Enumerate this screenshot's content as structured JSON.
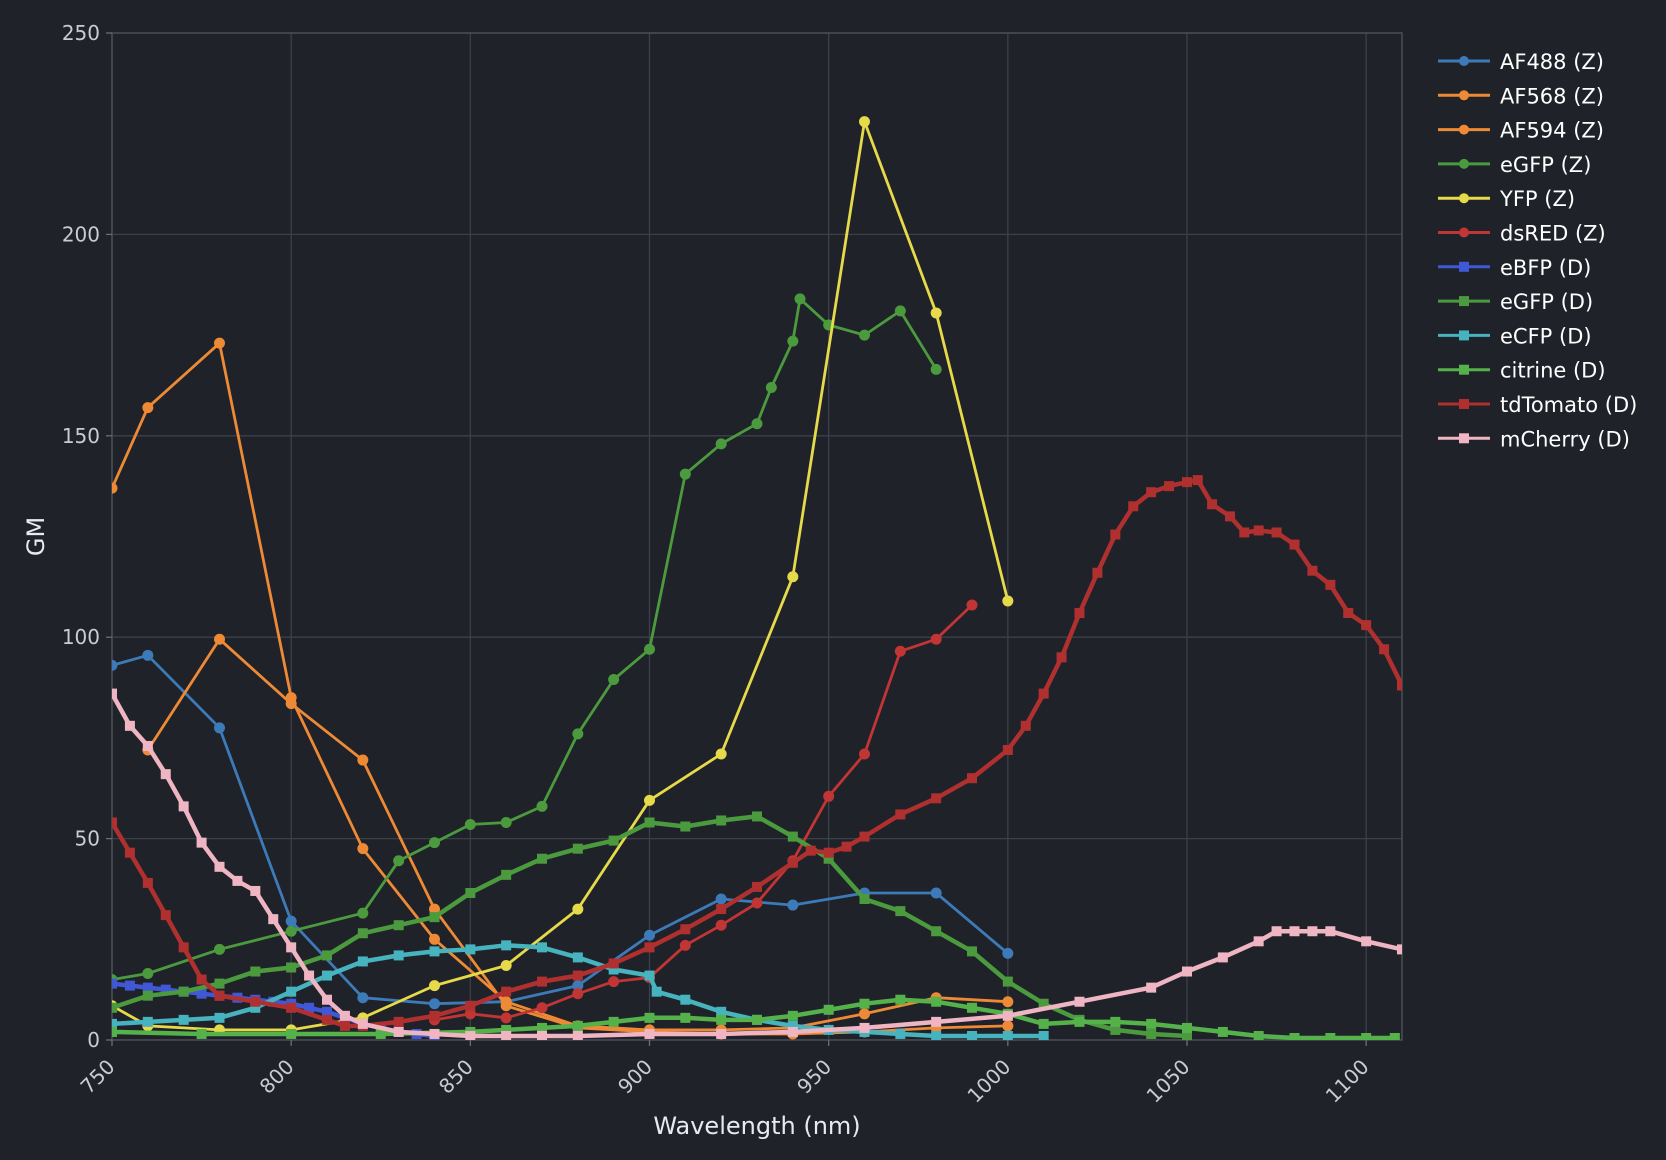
{
  "chart_data": {
    "type": "line",
    "title": "",
    "xlabel": "Wavelength (nm)",
    "ylabel": "GM",
    "xlim": [
      750,
      1110
    ],
    "ylim": [
      0,
      250
    ],
    "xticks": [
      750,
      800,
      850,
      900,
      950,
      1000,
      1050,
      1100
    ],
    "yticks": [
      0,
      50,
      100,
      150,
      200,
      250
    ],
    "grid": true,
    "legend_position": "right",
    "series": [
      {
        "name": "AF488 (Z)",
        "color": "#3d7ab8",
        "marker": "circle",
        "x": [
          750,
          760,
          780,
          800,
          820,
          840,
          860,
          880,
          900,
          920,
          940,
          960,
          980,
          1000
        ],
        "y": [
          93,
          95.5,
          77.5,
          29.5,
          10.5,
          9,
          9.5,
          13.5,
          26,
          35,
          33.5,
          36.5,
          36.5,
          21.5
        ]
      },
      {
        "name": "AF568 (Z)",
        "color": "#ee8a35",
        "marker": "circle",
        "x": [
          750,
          760,
          780,
          800,
          820,
          840,
          860,
          880,
          900,
          920,
          940,
          960,
          980,
          1000
        ],
        "y": [
          137,
          157,
          173,
          85,
          47.5,
          25,
          9.5,
          3.5,
          2.5,
          2.5,
          3,
          6.5,
          10.5,
          9.5
        ]
      },
      {
        "name": "AF594 (Z)",
        "color": "#ee8a35",
        "marker": "circle",
        "x": [
          760,
          780,
          800,
          820,
          840,
          860,
          880,
          900,
          920,
          940,
          960,
          980,
          1000
        ],
        "y": [
          72,
          99.5,
          83.5,
          69.5,
          32.5,
          8.5,
          3,
          2,
          1.5,
          1.5,
          2,
          3,
          3.5
        ]
      },
      {
        "name": "eGFP (Z)",
        "color": "#4b9b3e",
        "marker": "circle",
        "x": [
          750,
          760,
          780,
          800,
          820,
          830,
          840,
          850,
          860,
          870,
          880,
          890,
          900,
          910,
          920,
          930,
          934,
          940,
          942,
          950,
          960,
          970,
          980
        ],
        "y": [
          15,
          16.5,
          22.5,
          27,
          31.5,
          44.5,
          49,
          53.5,
          54,
          58,
          76,
          89.5,
          97,
          140.5,
          148,
          153,
          162,
          173.5,
          184,
          177.5,
          175,
          181,
          166.5
        ]
      },
      {
        "name": "YFP (Z)",
        "color": "#e6d94a",
        "marker": "circle",
        "x": [
          750,
          760,
          780,
          800,
          820,
          840,
          860,
          880,
          900,
          920,
          940,
          960,
          980,
          1000
        ],
        "y": [
          8.5,
          3.5,
          2.5,
          2.5,
          5.5,
          13.5,
          18.5,
          32.5,
          59.5,
          71,
          115,
          228,
          180.5,
          109
        ]
      },
      {
        "name": "dsRED (Z)",
        "color": "#c13535",
        "marker": "circle",
        "x": [
          840,
          850,
          860,
          870,
          880,
          890,
          900,
          910,
          920,
          930,
          940,
          950,
          960,
          970,
          980,
          990
        ],
        "y": [
          5,
          6.5,
          5.5,
          8,
          11.5,
          14.5,
          15.5,
          23.5,
          28.5,
          34,
          44.5,
          60.5,
          71,
          96.5,
          99.5,
          108
        ]
      },
      {
        "name": "eBFP (D)",
        "color": "#4158d6",
        "marker": "square",
        "x": [
          750,
          755,
          760,
          765,
          770,
          775,
          780,
          785,
          790,
          795,
          800,
          805,
          810,
          815,
          820,
          825,
          830,
          835,
          840
        ],
        "y": [
          14,
          13.5,
          13,
          12.5,
          12,
          11.5,
          11,
          10.5,
          10,
          9.5,
          9,
          8,
          7,
          5.5,
          4,
          3,
          2,
          1.5,
          1
        ]
      },
      {
        "name": "eGFP (D)",
        "color": "#4b9b3e",
        "marker": "square",
        "x": [
          750,
          760,
          770,
          780,
          790,
          800,
          810,
          820,
          830,
          840,
          850,
          860,
          870,
          880,
          890,
          900,
          910,
          920,
          930,
          940,
          950,
          960,
          970,
          980,
          990,
          1000,
          1010,
          1020,
          1030,
          1040,
          1050
        ],
        "y": [
          8,
          11,
          12,
          14,
          17,
          18,
          21,
          26.5,
          28.5,
          30.5,
          36.5,
          41,
          45,
          47.5,
          49.5,
          54,
          53,
          54.5,
          55.5,
          50.5,
          45,
          35,
          32,
          27,
          22,
          14.5,
          9,
          5,
          2.5,
          1.5,
          1
        ]
      },
      {
        "name": "eCFP (D)",
        "color": "#46b3bf",
        "marker": "square",
        "x": [
          750,
          760,
          770,
          780,
          790,
          800,
          810,
          820,
          830,
          840,
          850,
          860,
          870,
          880,
          890,
          900,
          902,
          910,
          920,
          930,
          940,
          950,
          960,
          970,
          980,
          990,
          1000,
          1010
        ],
        "y": [
          4,
          4.5,
          5,
          5.5,
          8,
          12,
          16,
          19.5,
          21,
          22,
          22.5,
          23.5,
          23,
          20.5,
          17.5,
          16,
          12,
          10,
          7,
          5,
          3.5,
          2.5,
          2,
          1.5,
          1,
          1,
          1,
          1
        ]
      },
      {
        "name": "citrine (D)",
        "color": "#55b24a",
        "marker": "square",
        "x": [
          750,
          775,
          800,
          825,
          850,
          860,
          870,
          880,
          890,
          900,
          910,
          920,
          930,
          940,
          950,
          960,
          970,
          980,
          990,
          1000,
          1010,
          1020,
          1030,
          1040,
          1050,
          1060,
          1070,
          1080,
          1090,
          1100,
          1108
        ],
        "y": [
          2,
          1.5,
          1.5,
          1.5,
          2,
          2.5,
          3,
          3.5,
          4.5,
          5.5,
          5.5,
          5,
          5,
          6,
          7.5,
          9,
          10,
          9.5,
          8,
          6.5,
          4,
          4.5,
          4.5,
          4,
          3,
          2,
          1,
          0.5,
          0.5,
          0.5,
          0.5
        ]
      },
      {
        "name": "tdTomato (D)",
        "color": "#b03030",
        "marker": "square",
        "x": [
          750,
          755,
          760,
          765,
          770,
          775,
          780,
          790,
          800,
          810,
          815,
          820,
          830,
          840,
          850,
          860,
          870,
          880,
          890,
          900,
          910,
          920,
          930,
          940,
          945,
          950,
          955,
          960,
          970,
          980,
          990,
          1000,
          1005,
          1010,
          1015,
          1020,
          1025,
          1030,
          1035,
          1040,
          1045,
          1050,
          1053,
          1057,
          1062,
          1066,
          1070,
          1075,
          1080,
          1085,
          1090,
          1095,
          1100,
          1105,
          1110
        ],
        "y": [
          54,
          46.5,
          39,
          31,
          23,
          15,
          11,
          9.5,
          8,
          5,
          3.5,
          3.5,
          4.5,
          6,
          8.5,
          12,
          14.5,
          16,
          19,
          23,
          27.5,
          32.5,
          38,
          44,
          47,
          46.5,
          48,
          50.5,
          56,
          60,
          65,
          72,
          78,
          86,
          95,
          106,
          116,
          125.5,
          132.5,
          136,
          137.5,
          138.5,
          139,
          133,
          130,
          126,
          126.5,
          126,
          123,
          116.5,
          113,
          106,
          103,
          97,
          88
        ]
      },
      {
        "name": "mCherry (D)",
        "color": "#f0b5c3",
        "marker": "square",
        "x": [
          750,
          755,
          760,
          765,
          770,
          775,
          780,
          785,
          790,
          795,
          800,
          805,
          810,
          815,
          820,
          830,
          840,
          850,
          860,
          870,
          880,
          900,
          920,
          940,
          960,
          980,
          1000,
          1020,
          1040,
          1050,
          1060,
          1070,
          1075,
          1080,
          1085,
          1090,
          1100,
          1110
        ],
        "y": [
          86,
          78,
          73,
          66,
          58,
          49,
          43,
          39.5,
          37,
          30,
          23,
          16,
          10,
          6,
          4,
          2,
          1.5,
          1,
          1,
          1,
          1,
          1.5,
          1.5,
          2,
          3,
          4.5,
          6,
          9.5,
          13,
          17,
          20.5,
          24.5,
          27,
          27,
          27,
          27,
          24.5,
          22.5
        ]
      }
    ]
  }
}
